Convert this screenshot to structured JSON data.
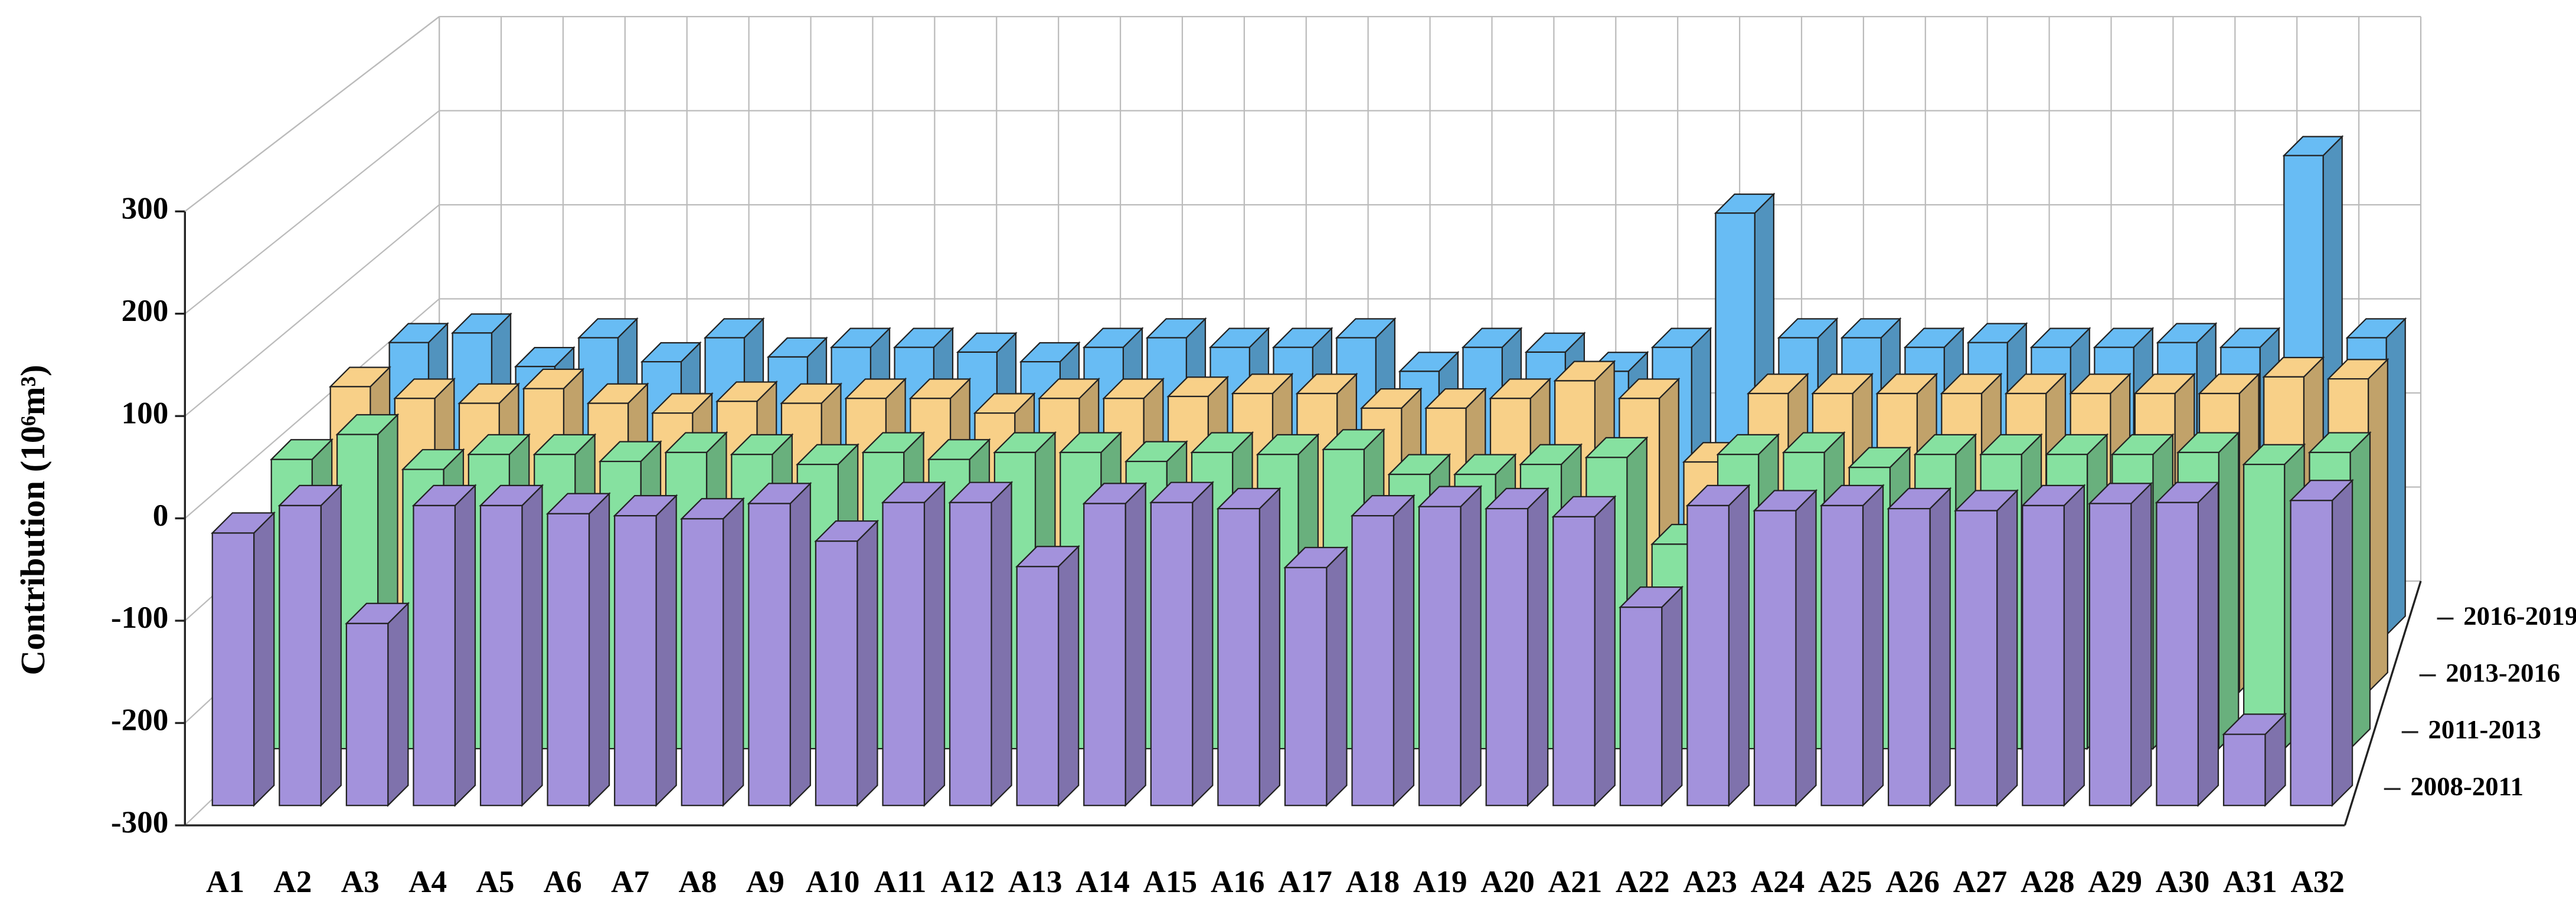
{
  "chart_data": {
    "type": "bar3d",
    "y_label": "Contribution (10⁶m³)",
    "categories": [
      "A1",
      "A2",
      "A3",
      "A4",
      "A5",
      "A6",
      "A7",
      "A8",
      "A9",
      "A10",
      "A11",
      "A12",
      "A13",
      "A14",
      "A15",
      "A16",
      "A17",
      "A18",
      "A19",
      "A20",
      "A21",
      "A22",
      "A23",
      "A24",
      "A25",
      "A26",
      "A27",
      "A28",
      "A29",
      "A30",
      "A31",
      "A32"
    ],
    "ylim": [
      -300,
      300
    ],
    "yticks": [
      -300,
      -200,
      -100,
      0,
      100,
      200,
      300
    ],
    "grid": true,
    "series": [
      {
        "name": "2008-2011",
        "color": "#a392dc",
        "values": [
          -32,
          -5,
          -121,
          -5,
          -5,
          -13,
          -15,
          -18,
          -3,
          -40,
          -2,
          -2,
          -65,
          -3,
          -2,
          -8,
          -66,
          -15,
          -6,
          -8,
          -16,
          -105,
          -5,
          -10,
          -5,
          -8,
          -10,
          -5,
          -3,
          -2,
          -230,
          0
        ]
      },
      {
        "name": "2011-2013",
        "color": "#86e1a0",
        "values": [
          -10,
          15,
          -20,
          -5,
          -5,
          -12,
          -3,
          -5,
          -15,
          -3,
          -10,
          -3,
          -3,
          -12,
          -3,
          -5,
          0,
          -25,
          -25,
          -15,
          -8,
          -95,
          -5,
          -3,
          -18,
          -5,
          -5,
          -5,
          -5,
          -3,
          -15,
          -3
        ]
      },
      {
        "name": "2013-2016",
        "color": "#f8d088",
        "values": [
          12,
          0,
          -5,
          10,
          -5,
          -15,
          -3,
          -5,
          0,
          0,
          -15,
          0,
          0,
          2,
          5,
          5,
          -10,
          -10,
          0,
          18,
          0,
          -65,
          5,
          5,
          5,
          5,
          5,
          5,
          5,
          5,
          22,
          20
        ]
      },
      {
        "name": "2016-2019",
        "color": "#68bcf4",
        "values": [
          5,
          15,
          -20,
          10,
          -15,
          10,
          -10,
          0,
          0,
          -5,
          -15,
          0,
          10,
          0,
          0,
          10,
          -25,
          0,
          -5,
          -25,
          0,
          140,
          10,
          10,
          0,
          5,
          0,
          0,
          5,
          0,
          200,
          10
        ]
      }
    ]
  }
}
